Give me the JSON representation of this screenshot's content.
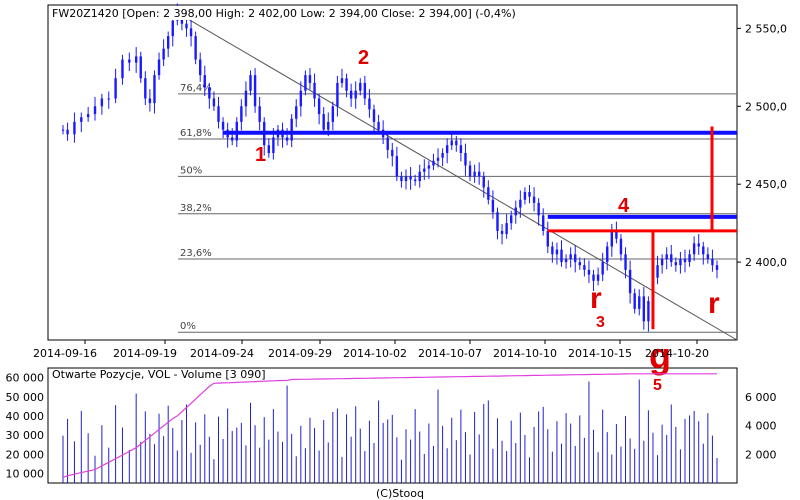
{
  "chart_data": [
    {
      "type": "candlestick",
      "title": "FW20Z1420 [Open: 2 398,00  High: 2 402,00  Low: 2 394,00  Close: 2 394,00] (-0,4%)",
      "ylim": [
        2350,
        2565
      ],
      "y_ticks": [
        2400,
        2450,
        2500,
        2550
      ],
      "y_tick_labels": [
        "2 400,0",
        "2 450,0",
        "2 500,0",
        "2 550,0"
      ],
      "x_tick_labels": [
        "2014-09-16",
        "2014-09-19",
        "2014-09-24",
        "2014-09-29",
        "2014-10-02",
        "2014-10-07",
        "2014-10-10",
        "2014-10-15",
        "2014-10-20"
      ],
      "price_path": [
        [
          0,
          2485
        ],
        [
          2,
          2482
        ],
        [
          5,
          2490
        ],
        [
          8,
          2493
        ],
        [
          11,
          2495
        ],
        [
          14,
          2500
        ],
        [
          17,
          2505
        ],
        [
          20,
          2505
        ],
        [
          23,
          2518
        ],
        [
          26,
          2530
        ],
        [
          29,
          2528
        ],
        [
          32,
          2532
        ],
        [
          34,
          2518
        ],
        [
          36,
          2505
        ],
        [
          38,
          2502
        ],
        [
          40,
          2520
        ],
        [
          42,
          2530
        ],
        [
          44,
          2537
        ],
        [
          46,
          2545
        ],
        [
          48,
          2555
        ],
        [
          50,
          2560
        ],
        [
          52,
          2553
        ],
        [
          54,
          2550
        ],
        [
          56,
          2545
        ],
        [
          58,
          2530
        ],
        [
          60,
          2520
        ],
        [
          62,
          2512
        ],
        [
          64,
          2505
        ],
        [
          66,
          2500
        ],
        [
          68,
          2490
        ],
        [
          70,
          2485
        ],
        [
          72,
          2480
        ],
        [
          74,
          2478
        ],
        [
          76,
          2490
        ],
        [
          78,
          2500
        ],
        [
          80,
          2510
        ],
        [
          82,
          2520
        ],
        [
          84,
          2500
        ],
        [
          86,
          2490
        ],
        [
          88,
          2475
        ],
        [
          90,
          2470
        ],
        [
          92,
          2480
        ],
        [
          94,
          2485
        ],
        [
          96,
          2480
        ],
        [
          98,
          2478
        ],
        [
          100,
          2492
        ],
        [
          102,
          2500
        ],
        [
          104,
          2510
        ],
        [
          106,
          2520
        ],
        [
          108,
          2515
        ],
        [
          110,
          2505
        ],
        [
          112,
          2495
        ],
        [
          114,
          2485
        ],
        [
          116,
          2490
        ],
        [
          118,
          2500
        ],
        [
          120,
          2515
        ],
        [
          122,
          2518
        ],
        [
          124,
          2510
        ],
        [
          126,
          2505
        ],
        [
          128,
          2510
        ],
        [
          130,
          2515
        ],
        [
          132,
          2505
        ],
        [
          134,
          2498
        ],
        [
          136,
          2490
        ],
        [
          138,
          2485
        ],
        [
          140,
          2480
        ],
        [
          142,
          2472
        ],
        [
          144,
          2468
        ],
        [
          146,
          2455
        ],
        [
          148,
          2452
        ],
        [
          150,
          2455
        ],
        [
          152,
          2453
        ],
        [
          154,
          2452
        ],
        [
          156,
          2458
        ],
        [
          158,
          2460
        ],
        [
          160,
          2462
        ],
        [
          162,
          2465
        ],
        [
          164,
          2467
        ],
        [
          166,
          2470
        ],
        [
          168,
          2475
        ],
        [
          170,
          2478
        ],
        [
          172,
          2475
        ],
        [
          174,
          2470
        ],
        [
          176,
          2462
        ],
        [
          178,
          2455
        ],
        [
          180,
          2458
        ],
        [
          182,
          2455
        ],
        [
          184,
          2448
        ],
        [
          186,
          2440
        ],
        [
          188,
          2432
        ],
        [
          190,
          2420
        ],
        [
          192,
          2418
        ],
        [
          194,
          2425
        ],
        [
          196,
          2430
        ],
        [
          198,
          2435
        ],
        [
          200,
          2440
        ],
        [
          202,
          2445
        ],
        [
          204,
          2442
        ],
        [
          206,
          2438
        ],
        [
          208,
          2430
        ],
        [
          210,
          2420
        ],
        [
          212,
          2410
        ],
        [
          214,
          2405
        ],
        [
          216,
          2408
        ],
        [
          218,
          2400
        ],
        [
          220,
          2402
        ],
        [
          222,
          2405
        ],
        [
          224,
          2400
        ],
        [
          226,
          2398
        ],
        [
          228,
          2395
        ],
        [
          230,
          2392
        ],
        [
          232,
          2388
        ],
        [
          234,
          2392
        ],
        [
          236,
          2400
        ],
        [
          238,
          2410
        ],
        [
          240,
          2420
        ],
        [
          242,
          2415
        ],
        [
          244,
          2405
        ],
        [
          246,
          2395
        ],
        [
          248,
          2380
        ],
        [
          250,
          2370
        ],
        [
          252,
          2378
        ],
        [
          254,
          2362
        ],
        [
          256,
          2375
        ],
        [
          258,
          2390
        ],
        [
          260,
          2398
        ],
        [
          262,
          2402
        ],
        [
          264,
          2405
        ],
        [
          266,
          2400
        ],
        [
          268,
          2398
        ],
        [
          270,
          2402
        ],
        [
          272,
          2400
        ],
        [
          274,
          2405
        ],
        [
          276,
          2412
        ],
        [
          278,
          2410
        ],
        [
          280,
          2405
        ],
        [
          282,
          2402
        ],
        [
          284,
          2398
        ],
        [
          286,
          2395
        ]
      ],
      "volume": {
        "label": "Otwarte Pozycje, VOL - Volume [3 090]",
        "left_ticks": [
          10000,
          20000,
          30000,
          40000,
          50000,
          60000
        ],
        "left_tick_labels": [
          "10 000",
          "20 000",
          "30 000",
          "40 000",
          "50 000",
          "60 000"
        ],
        "right_ticks": [
          2000,
          4000,
          6000
        ],
        "right_tick_labels": [
          "2 000",
          "4 000",
          "6 000"
        ],
        "source": "(C)Stooq"
      },
      "fibonacci": [
        {
          "label": "76,4%",
          "value": 2508
        },
        {
          "label": "61,8%",
          "value": 2479
        },
        {
          "label": "50%",
          "value": 2455
        },
        {
          "label": "38,2%",
          "value": 2431
        },
        {
          "label": "23,6%",
          "value": 2402
        },
        {
          "label": "0%",
          "value": 2355
        }
      ],
      "annotations": [
        "1",
        "2",
        "r",
        "3",
        "4",
        "g",
        "5",
        "r"
      ]
    }
  ]
}
